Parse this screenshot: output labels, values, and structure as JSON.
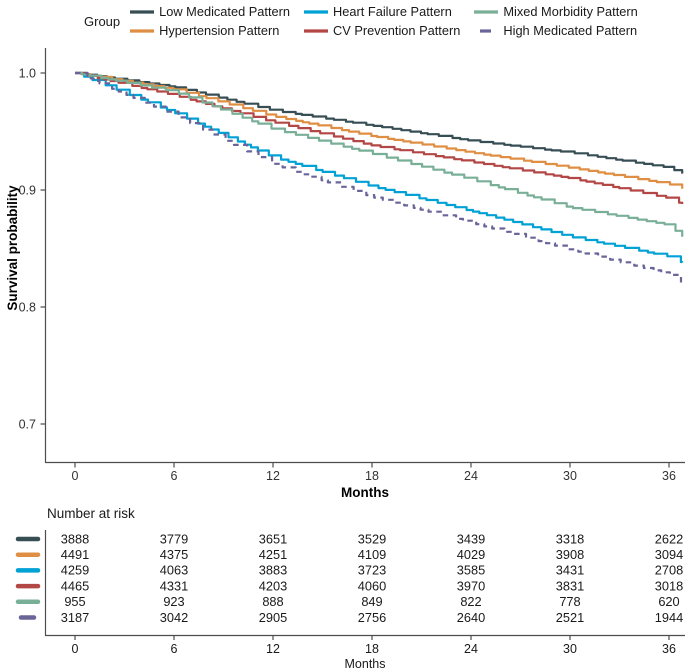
{
  "legend": {
    "title": "Group",
    "entries": [
      {
        "label": "Low Medicated Pattern",
        "color": "#374E55",
        "dash": "solid"
      },
      {
        "label": "Hypertension Pattern",
        "color": "#DF8F44",
        "dash": "solid"
      },
      {
        "label": "Heart Failure Pattern",
        "color": "#00A1D5",
        "dash": "solid"
      },
      {
        "label": "CV Prevention Pattern",
        "color": "#B24745",
        "dash": "solid"
      },
      {
        "label": "Mixed Morbidity Pattern",
        "color": "#79AF97",
        "dash": "solid"
      },
      {
        "label": "High Medicated Pattern",
        "color": "#6A6599",
        "dash": "dashed"
      }
    ]
  },
  "chart_data": {
    "type": "line",
    "subtype": "kaplan-meier-step",
    "title": "",
    "xlabel": "Months",
    "ylabel": "Survival probability",
    "xlim": [
      -1.8,
      37
    ],
    "ylim": [
      0.67,
      1.005
    ],
    "grid": false,
    "legend_position": "top",
    "xticks": [
      0,
      6,
      12,
      18,
      24,
      30,
      36
    ],
    "yticks": [
      {
        "label": "1.0",
        "v": 1.0
      },
      {
        "label": "0.9",
        "v": 0.9
      },
      {
        "label": "0.8",
        "v": 0.8
      },
      {
        "label": "0.7",
        "v": 0.7
      }
    ],
    "x": [
      0,
      6,
      12,
      18,
      24,
      30,
      36,
      36.8
    ],
    "series": [
      {
        "name": "Low Medicated Pattern",
        "color": "#374E55",
        "dash": "solid",
        "values": [
          1.0,
          0.988,
          0.968,
          0.955,
          0.942,
          0.932,
          0.919,
          0.914
        ]
      },
      {
        "name": "Hypertension Pattern",
        "color": "#DF8F44",
        "dash": "solid",
        "values": [
          1.0,
          0.986,
          0.963,
          0.946,
          0.932,
          0.919,
          0.905,
          0.901
        ]
      },
      {
        "name": "Heart Failure Pattern",
        "color": "#00A1D5",
        "dash": "solid",
        "values": [
          1.0,
          0.966,
          0.928,
          0.903,
          0.882,
          0.86,
          0.843,
          0.838
        ]
      },
      {
        "name": "CV Prevention Pattern",
        "color": "#B24745",
        "dash": "solid",
        "values": [
          1.0,
          0.981,
          0.958,
          0.938,
          0.924,
          0.91,
          0.893,
          0.888
        ]
      },
      {
        "name": "Mixed Morbidity Pattern",
        "color": "#79AF97",
        "dash": "solid",
        "values": [
          1.0,
          0.984,
          0.952,
          0.931,
          0.909,
          0.885,
          0.87,
          0.86
        ]
      },
      {
        "name": "High Medicated Pattern",
        "color": "#6A6599",
        "dash": "dashed",
        "values": [
          1.0,
          0.964,
          0.922,
          0.894,
          0.872,
          0.849,
          0.828,
          0.82
        ]
      }
    ]
  },
  "risk_table": {
    "title": "Number at risk",
    "xlabel": "Months",
    "timepoints": [
      0,
      6,
      12,
      18,
      24,
      30,
      36
    ],
    "rows": [
      {
        "group": "Low Medicated Pattern",
        "color": "#374E55",
        "dash": "solid",
        "counts": [
          3888,
          3779,
          3651,
          3529,
          3439,
          3318,
          2622
        ]
      },
      {
        "group": "Hypertension Pattern",
        "color": "#DF8F44",
        "dash": "solid",
        "counts": [
          4491,
          4375,
          4251,
          4109,
          4029,
          3908,
          3094
        ]
      },
      {
        "group": "Heart Failure Pattern",
        "color": "#00A1D5",
        "dash": "solid",
        "counts": [
          4259,
          4063,
          3883,
          3723,
          3585,
          3431,
          2708
        ]
      },
      {
        "group": "CV Prevention Pattern",
        "color": "#B24745",
        "dash": "solid",
        "counts": [
          4465,
          4331,
          4203,
          4060,
          3970,
          3831,
          3018
        ]
      },
      {
        "group": "Mixed Morbidity Pattern",
        "color": "#79AF97",
        "dash": "solid",
        "counts": [
          955,
          923,
          888,
          849,
          822,
          778,
          620
        ]
      },
      {
        "group": "High Medicated Pattern",
        "color": "#6A6599",
        "dash": "dashed",
        "counts": [
          3187,
          3042,
          2905,
          2756,
          2640,
          2521,
          1944
        ]
      }
    ]
  },
  "axis_color": "#4d4d4d"
}
